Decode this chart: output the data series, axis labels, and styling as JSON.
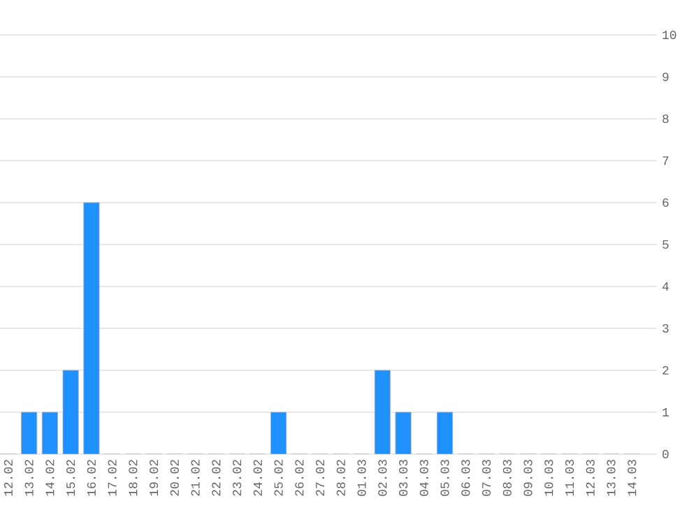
{
  "chart_data": {
    "type": "bar",
    "categories": [
      "12.02",
      "13.02",
      "14.02",
      "15.02",
      "16.02",
      "17.02",
      "18.02",
      "19.02",
      "20.02",
      "21.02",
      "22.02",
      "23.02",
      "24.02",
      "25.02",
      "26.02",
      "27.02",
      "28.02",
      "01.03",
      "02.03",
      "03.03",
      "04.03",
      "05.03",
      "06.03",
      "07.03",
      "08.03",
      "09.03",
      "10.03",
      "11.03",
      "12.03",
      "13.03",
      "14.03"
    ],
    "values": [
      0,
      1,
      1,
      2,
      6,
      0,
      0,
      0,
      0,
      0,
      0,
      0,
      0,
      1,
      0,
      0,
      0,
      0,
      2,
      1,
      0,
      1,
      0,
      0,
      0,
      0,
      0,
      0,
      0,
      0,
      0
    ],
    "color": "#1e90ff",
    "ylim": [
      0,
      10
    ],
    "yticks": [
      0,
      1,
      2,
      3,
      4,
      5,
      6,
      7,
      8,
      9,
      10
    ],
    "grid": "y"
  }
}
